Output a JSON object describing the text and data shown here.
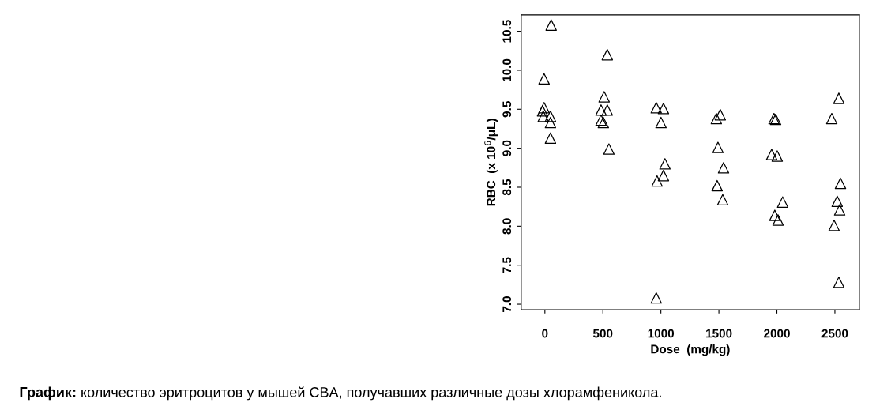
{
  "chart_data": {
    "type": "scatter",
    "xlabel": "Dose  (mg/kg)",
    "ylabel": "RBC  (x 10$^{6}$/μL)",
    "annotations": [
      "График:",
      "количество эритроцитов у мышей CBA, получавших различные дозы хлорамфеникола."
    ],
    "series": [
      {
        "color": "#000000",
        "x": [
          -20,
          -7,
          -14,
          48,
          48,
          48,
          -7,
          54,
          511,
          484,
          538,
          484,
          504,
          552,
          538,
          960,
          1022,
          1001,
          1035,
          1022,
          967,
          960,
          1478,
          1512,
          1492,
          1540,
          1485,
          1533,
          1975,
          1989,
          1955,
          2003,
          2050,
          1982,
          2010,
          2534,
          2473,
          2548,
          2520,
          2541,
          2493,
          2534
        ],
        "values": [
          9.48,
          9.52,
          9.41,
          9.41,
          9.33,
          9.13,
          9.89,
          10.58,
          9.66,
          9.49,
          9.49,
          9.36,
          9.33,
          8.99,
          10.2,
          9.52,
          9.51,
          9.33,
          8.8,
          8.65,
          8.58,
          7.08,
          9.38,
          9.43,
          9.01,
          8.75,
          8.52,
          8.34,
          9.38,
          9.37,
          8.92,
          8.9,
          8.31,
          8.14,
          8.08,
          9.64,
          9.38,
          8.55,
          8.32,
          8.21,
          8.01,
          7.28
        ]
      }
    ],
    "marker": "triangle",
    "grid": false,
    "legend": false,
    "xlim": [
      -204,
      2711
    ],
    "ylim": [
      6.93,
      10.71
    ],
    "xticks": [
      0,
      500,
      1000,
      1500,
      2000,
      2500
    ],
    "yticks": [
      {
        "value": 7.0,
        "label": "7.0"
      },
      {
        "value": 7.5,
        "label": "7.5"
      },
      {
        "value": 8.0,
        "label": "8.0"
      },
      {
        "value": 8.5,
        "label": "8.5"
      },
      {
        "value": 9.0,
        "label": "9.0"
      },
      {
        "value": 9.5,
        "label": "9.5"
      },
      {
        "value": 10.0,
        "label": "10.0"
      },
      {
        "value": 10.5,
        "label": "10.5"
      }
    ]
  }
}
